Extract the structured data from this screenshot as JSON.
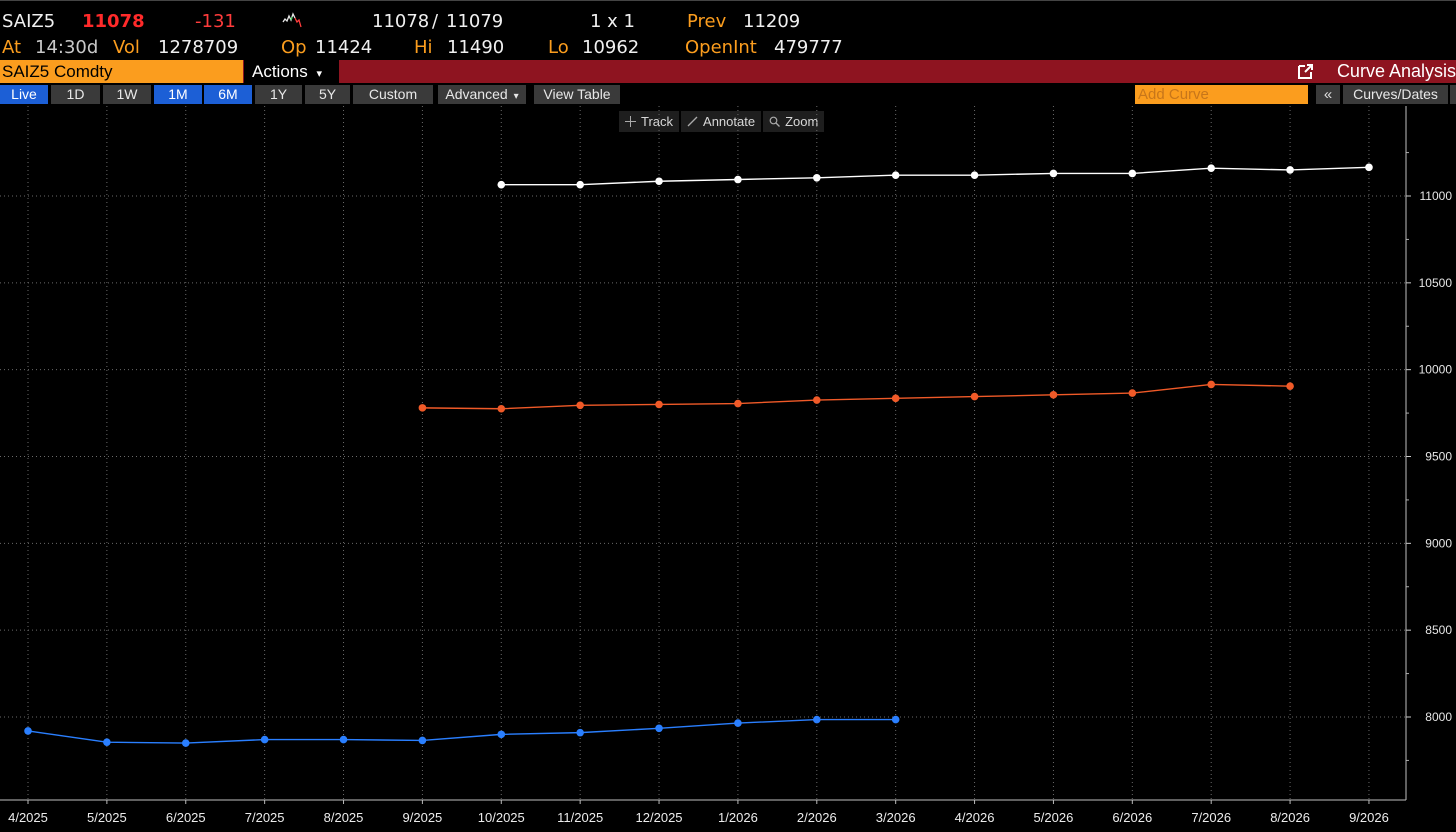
{
  "quote": {
    "ticker": "SAIZ5",
    "last": "11078",
    "change": "-131",
    "bid_ask_1": "11078",
    "bid_ask_sep": "/",
    "bid_ask_2": "11079",
    "size": "1 x 1",
    "prev_label": "Prev",
    "prev_value": "11209",
    "at_label": "At",
    "time": "14:30d",
    "vol_label": "Vol",
    "vol_value": "1278709",
    "op_label": "Op",
    "op_value": "11424",
    "hi_label": "Hi",
    "hi_value": "11490",
    "lo_label": "Lo",
    "lo_value": "10962",
    "oi_label": "OpenInt",
    "oi_value": "479777",
    "sparkline_icon": "mini-price-chart-icon"
  },
  "titlebar": {
    "security": "SAIZ5 Comdty",
    "actions_label": "Actions",
    "actions_caret": "▾",
    "screen_title": "Curve Analysis",
    "export_icon": "pop-out-icon"
  },
  "toolbar": {
    "ranges": [
      {
        "label": "Live",
        "active": true
      },
      {
        "label": "1D",
        "active": false
      },
      {
        "label": "1W",
        "active": false
      },
      {
        "label": "1M",
        "active": true
      },
      {
        "label": "6M",
        "active": true
      },
      {
        "label": "1Y",
        "active": false
      },
      {
        "label": "5Y",
        "active": false
      },
      {
        "label": "Custom",
        "active": false
      }
    ],
    "advanced_label": "Advanced",
    "advanced_caret": "▾",
    "view_table_label": "View Table",
    "add_curve_placeholder": "Add Curve",
    "collapse_label": "«",
    "curves_dates_label": "Curves/Dates"
  },
  "chart_tools": [
    {
      "label": "Track",
      "icon": "crosshair-icon"
    },
    {
      "label": "Annotate",
      "icon": "pencil-icon"
    },
    {
      "label": "Zoom",
      "icon": "magnifier-icon"
    }
  ],
  "colors": {
    "background": "#000000",
    "amber": "#fb9d1e",
    "title_red": "#8e1420",
    "active_blue": "#1c5fd6",
    "series_white": "#ffffff",
    "series_orange": "#f05a28",
    "series_blue": "#2a7fff"
  },
  "chart_data": {
    "type": "line",
    "title": "",
    "xlabel": "",
    "ylabel": "",
    "x": [
      "4/2025",
      "5/2025",
      "6/2025",
      "7/2025",
      "8/2025",
      "9/2025",
      "10/2025",
      "11/2025",
      "12/2025",
      "1/2026",
      "2/2026",
      "3/2026",
      "4/2026",
      "5/2026",
      "6/2026",
      "7/2026",
      "8/2026",
      "9/2026"
    ],
    "ylim": [
      7500,
      11250
    ],
    "yticks": [
      8000,
      8500,
      9000,
      9500,
      10000,
      10500,
      11000
    ],
    "grid": true,
    "y_axis_side": "right",
    "series": [
      {
        "color": "#ffffff",
        "values": [
          null,
          null,
          null,
          null,
          null,
          null,
          11065,
          11065,
          11085,
          11095,
          11105,
          11120,
          11120,
          11130,
          11130,
          11160,
          11150,
          11165
        ]
      },
      {
        "color": "#f05a28",
        "values": [
          null,
          null,
          null,
          null,
          null,
          9780,
          9775,
          9795,
          9800,
          9805,
          9825,
          9835,
          9845,
          9855,
          9865,
          9915,
          9905,
          null
        ]
      },
      {
        "color": "#2a7fff",
        "values": [
          7920,
          7855,
          7850,
          7870,
          7870,
          7865,
          7900,
          7910,
          7935,
          7965,
          7985,
          7985,
          null,
          null,
          null,
          null,
          null,
          null
        ]
      }
    ]
  }
}
